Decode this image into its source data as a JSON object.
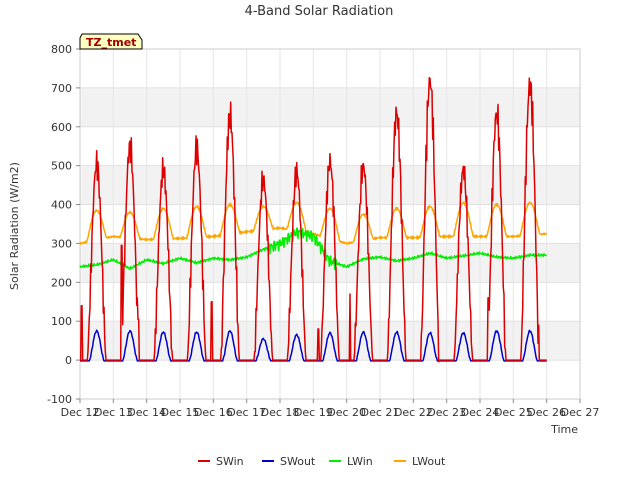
{
  "chart_data": {
    "type": "line",
    "title": "4-Band Solar Radiation",
    "xlabel": "Time",
    "ylabel": "Solar Radiation (W/m2)",
    "site_label": "TZ_tmet",
    "ylim": [
      -100,
      800
    ],
    "yticks": [
      -100,
      0,
      100,
      200,
      300,
      400,
      500,
      600,
      700,
      800
    ],
    "xlim": [
      "Dec 12",
      "Dec 27"
    ],
    "xticks": [
      "Dec 12",
      "Dec 13",
      "Dec 14",
      "Dec 15",
      "Dec 16",
      "Dec 17",
      "Dec 18",
      "Dec 19",
      "Dec 20",
      "Dec 21",
      "Dec 22",
      "Dec 23",
      "Dec 24",
      "Dec 25",
      "Dec 26",
      "Dec 27"
    ],
    "grid": true,
    "legend_position": "bottom-center",
    "data_span_days": [
      "Dec 12",
      "Dec 26"
    ],
    "series": [
      {
        "name": "SWin",
        "color": "#dd0000",
        "daily_peak": [
          505,
          550,
          490,
          545,
          630,
          465,
          485,
          510,
          500,
          635,
          720,
          490,
          635,
          710
        ],
        "spikes": [
          [
            12.05,
            140
          ],
          [
            13.25,
            295
          ],
          [
            13.75,
            105
          ],
          [
            14.65,
            160
          ],
          [
            15.45,
            145
          ],
          [
            15.95,
            150
          ],
          [
            16.5,
            150
          ],
          [
            17.5,
            125
          ],
          [
            18.5,
            80
          ],
          [
            19.15,
            80
          ],
          [
            19.55,
            135
          ],
          [
            20.1,
            170
          ],
          [
            21.45,
            180
          ],
          [
            22.6,
            420
          ],
          [
            24.25,
            160
          ],
          [
            24.35,
            175
          ],
          [
            24.45,
            170
          ],
          [
            25.45,
            255
          ]
        ]
      },
      {
        "name": "SWout",
        "color": "#0000cc",
        "daily_peak": [
          75,
          75,
          72,
          72,
          75,
          55,
          65,
          70,
          72,
          72,
          70,
          70,
          75,
          75
        ]
      },
      {
        "name": "LWin",
        "color": "#00ee00",
        "days": [
          12,
          12.5,
          13,
          13.5,
          14,
          14.5,
          15,
          15.5,
          16,
          16.5,
          17,
          17.5,
          18,
          18.5,
          19,
          19.5,
          20,
          20.5,
          21,
          21.5,
          22,
          22.5,
          23,
          23.5,
          24,
          24.5,
          25,
          25.5
        ],
        "values": [
          240,
          245,
          258,
          235,
          258,
          248,
          262,
          250,
          262,
          258,
          265,
          285,
          300,
          330,
          320,
          255,
          240,
          260,
          265,
          255,
          262,
          275,
          262,
          268,
          275,
          265,
          262,
          270
        ]
      },
      {
        "name": "LWout",
        "color": "#ffa500",
        "night_base": [
          300,
          318,
          310,
          313,
          318,
          330,
          340,
          325,
          300,
          315,
          315,
          318,
          318,
          318,
          325
        ],
        "daily_peak": [
          385,
          380,
          390,
          395,
          400,
          395,
          405,
          390,
          375,
          390,
          395,
          405,
          400,
          405
        ]
      }
    ]
  }
}
